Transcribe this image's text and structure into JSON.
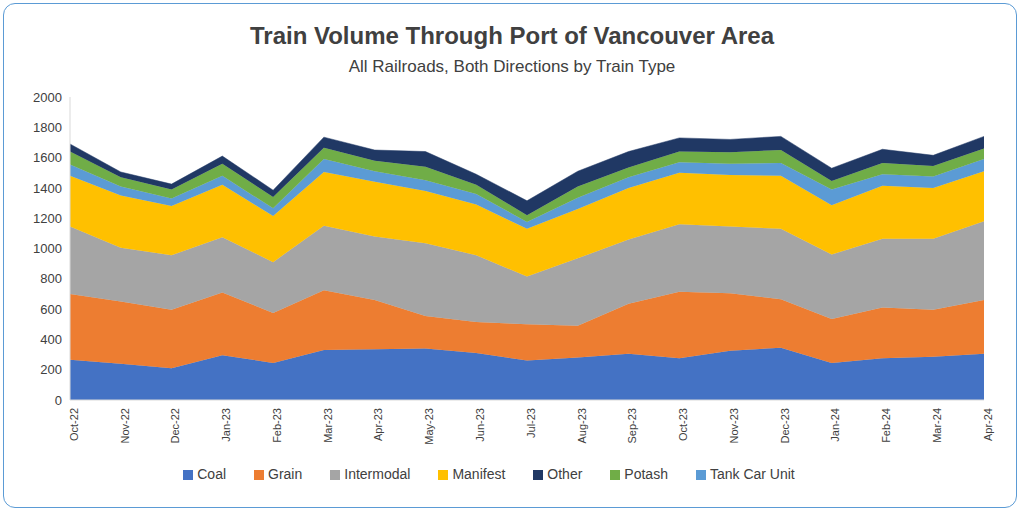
{
  "chart_data": {
    "type": "area",
    "title": "Train Volume Through Port of Vancouver Area",
    "subtitle": "All Railroads, Both Directions by Train Type",
    "categories": [
      "Oct-22",
      "Nov-22",
      "Dec-22",
      "Jan-23",
      "Feb-23",
      "Mar-23",
      "Apr-23",
      "May-23",
      "Jun-23",
      "Jul-23",
      "Aug-23",
      "Sep-23",
      "Oct-23",
      "Nov-23",
      "Dec-23",
      "Jan-24",
      "Feb-24",
      "Mar-24",
      "Apr-24"
    ],
    "series": [
      {
        "name": "Coal",
        "color": "#4472c4",
        "values": [
          265,
          240,
          210,
          295,
          245,
          330,
          335,
          340,
          310,
          260,
          280,
          305,
          275,
          325,
          345,
          245,
          275,
          285,
          305
        ]
      },
      {
        "name": "Grain",
        "color": "#ed7d31",
        "values": [
          435,
          410,
          385,
          415,
          330,
          395,
          325,
          215,
          205,
          240,
          210,
          330,
          440,
          380,
          320,
          290,
          335,
          310,
          355
        ]
      },
      {
        "name": "Intermodal",
        "color": "#a5a5a5",
        "values": [
          445,
          355,
          360,
          365,
          335,
          425,
          420,
          480,
          440,
          315,
          445,
          425,
          445,
          440,
          465,
          425,
          455,
          470,
          520
        ]
      },
      {
        "name": "Manifest",
        "color": "#ffc000",
        "values": [
          335,
          345,
          325,
          345,
          305,
          355,
          360,
          345,
          335,
          315,
          325,
          340,
          340,
          340,
          350,
          325,
          350,
          335,
          330
        ]
      },
      {
        "name": "Tank Car Unit",
        "color": "#5b9bd5",
        "values": [
          75,
          60,
          50,
          60,
          50,
          85,
          70,
          70,
          70,
          45,
          75,
          70,
          70,
          75,
          85,
          105,
          75,
          75,
          80
        ]
      },
      {
        "name": "Potash",
        "color": "#70ad47",
        "values": [
          85,
          60,
          60,
          80,
          75,
          75,
          70,
          90,
          60,
          45,
          75,
          65,
          70,
          75,
          85,
          55,
          75,
          70,
          70
        ]
      },
      {
        "name": "Other",
        "color": "#203864",
        "values": [
          50,
          35,
          35,
          50,
          45,
          70,
          70,
          100,
          70,
          95,
          100,
          105,
          90,
          85,
          90,
          85,
          90,
          70,
          80
        ]
      }
    ],
    "ylim": [
      0,
      2000
    ],
    "yticks": [
      0,
      200,
      400,
      600,
      800,
      1000,
      1200,
      1400,
      1600,
      1800,
      2000
    ],
    "stacked": true,
    "grid": false,
    "legend": "bottom"
  }
}
